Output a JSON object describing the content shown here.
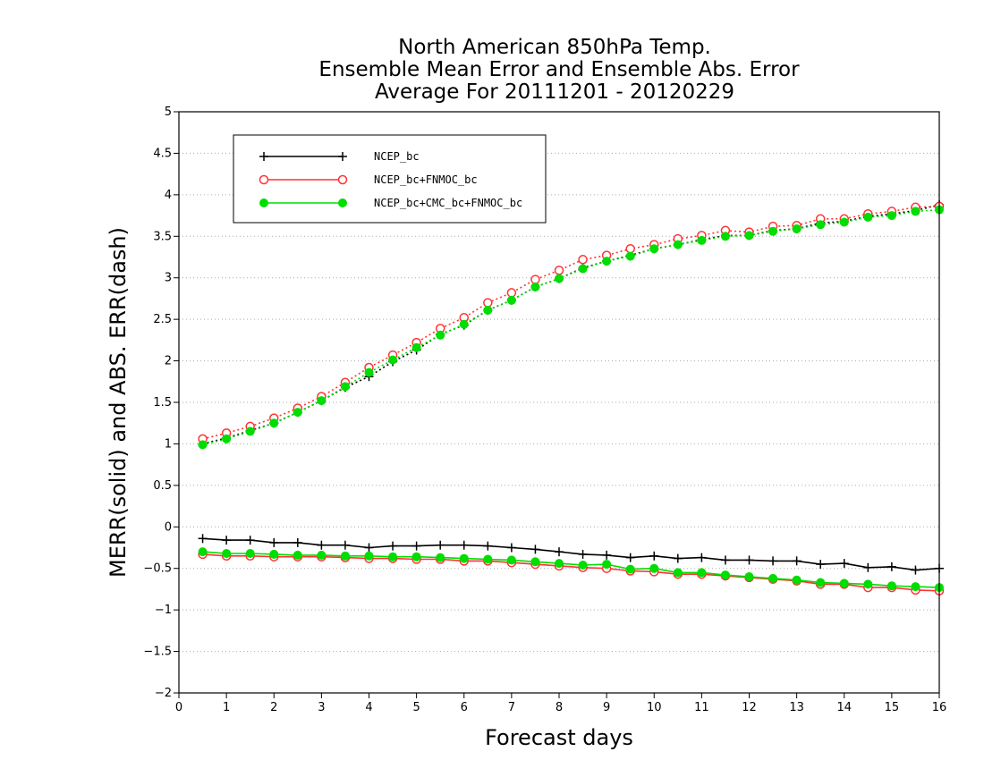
{
  "chart_data": {
    "type": "line",
    "title_lines": [
      "North American 850hPa Temp.",
      "Ensemble Mean Error and Ensemble Abs. Error",
      "Average For 20111201 - 20120229"
    ],
    "xlabel": "Forecast days",
    "ylabel": "MERR(solid) and ABS. ERR(dash)",
    "xlim": [
      0,
      16
    ],
    "ylim": [
      -2,
      5
    ],
    "x_ticks": [
      "0",
      "1",
      "2",
      "3",
      "4",
      "5",
      "6",
      "7",
      "8",
      "9",
      "10",
      "11",
      "12",
      "13",
      "14",
      "15",
      "16"
    ],
    "y_ticks": [
      "5",
      "4.5",
      "4",
      "3.5",
      "3",
      "2.5",
      "2",
      "1.5",
      "1",
      "0.5",
      "0",
      "−0.5",
      "−1",
      "−1.5",
      "−2"
    ],
    "y_tick_values": [
      5,
      4.5,
      4,
      3.5,
      3,
      2.5,
      2,
      1.5,
      1,
      0.5,
      0,
      -0.5,
      -1,
      -1.5,
      -2
    ],
    "grid": "horizontal dotted",
    "legend_position": "top-left",
    "x": [
      0.5,
      1,
      1.5,
      2,
      2.5,
      3,
      3.5,
      4,
      4.5,
      5,
      5.5,
      6,
      6.5,
      7,
      7.5,
      8,
      8.5,
      9,
      9.5,
      10,
      10.5,
      11,
      11.5,
      12,
      12.5,
      13,
      13.5,
      14,
      14.5,
      15,
      15.5,
      16
    ],
    "series": [
      {
        "name": "NCEP_bc",
        "color": "#000000",
        "marker": "plus",
        "merr": [
          -0.14,
          -0.16,
          -0.16,
          -0.19,
          -0.19,
          -0.22,
          -0.22,
          -0.25,
          -0.23,
          -0.23,
          -0.22,
          -0.22,
          -0.23,
          -0.25,
          -0.27,
          -0.3,
          -0.33,
          -0.34,
          -0.37,
          -0.35,
          -0.38,
          -0.37,
          -0.4,
          -0.4,
          -0.41,
          -0.41,
          -0.45,
          -0.44,
          -0.49,
          -0.48,
          -0.52,
          -0.5
        ],
        "abs_err": [
          1.0,
          1.07,
          1.16,
          1.25,
          1.38,
          1.52,
          1.68,
          1.81,
          1.99,
          2.13,
          2.32,
          2.43,
          2.61,
          2.73,
          2.89,
          2.99,
          3.12,
          3.2,
          3.27,
          3.35,
          3.4,
          3.46,
          3.51,
          3.51,
          3.57,
          3.59,
          3.66,
          3.68,
          3.74,
          3.77,
          3.81,
          3.88
        ]
      },
      {
        "name": "NCEP_bc+FNMOC_bc",
        "color": "#ff3333",
        "marker": "open-circle",
        "merr": [
          -0.33,
          -0.35,
          -0.35,
          -0.36,
          -0.36,
          -0.36,
          -0.37,
          -0.38,
          -0.38,
          -0.39,
          -0.39,
          -0.41,
          -0.41,
          -0.43,
          -0.45,
          -0.47,
          -0.49,
          -0.5,
          -0.53,
          -0.54,
          -0.57,
          -0.57,
          -0.59,
          -0.61,
          -0.63,
          -0.65,
          -0.69,
          -0.69,
          -0.73,
          -0.73,
          -0.76,
          -0.77
        ],
        "abs_err": [
          1.06,
          1.13,
          1.21,
          1.31,
          1.43,
          1.57,
          1.74,
          1.92,
          2.07,
          2.22,
          2.39,
          2.52,
          2.7,
          2.82,
          2.98,
          3.09,
          3.22,
          3.27,
          3.35,
          3.4,
          3.47,
          3.51,
          3.57,
          3.55,
          3.62,
          3.63,
          3.71,
          3.71,
          3.77,
          3.8,
          3.85,
          3.86
        ]
      },
      {
        "name": "NCEP_bc+CMC_bc+FNMOC_bc",
        "color": "#00dd00",
        "marker": "filled-circle",
        "merr": [
          -0.3,
          -0.32,
          -0.32,
          -0.33,
          -0.34,
          -0.34,
          -0.35,
          -0.35,
          -0.36,
          -0.36,
          -0.37,
          -0.38,
          -0.39,
          -0.4,
          -0.42,
          -0.44,
          -0.46,
          -0.45,
          -0.51,
          -0.5,
          -0.55,
          -0.55,
          -0.58,
          -0.6,
          -0.62,
          -0.64,
          -0.67,
          -0.68,
          -0.69,
          -0.71,
          -0.72,
          -0.73
        ],
        "abs_err": [
          0.99,
          1.06,
          1.15,
          1.25,
          1.38,
          1.52,
          1.69,
          1.86,
          2.01,
          2.16,
          2.31,
          2.44,
          2.61,
          2.73,
          2.89,
          2.99,
          3.11,
          3.2,
          3.26,
          3.35,
          3.4,
          3.45,
          3.5,
          3.51,
          3.56,
          3.59,
          3.64,
          3.67,
          3.73,
          3.75,
          3.8,
          3.82
        ]
      }
    ]
  }
}
